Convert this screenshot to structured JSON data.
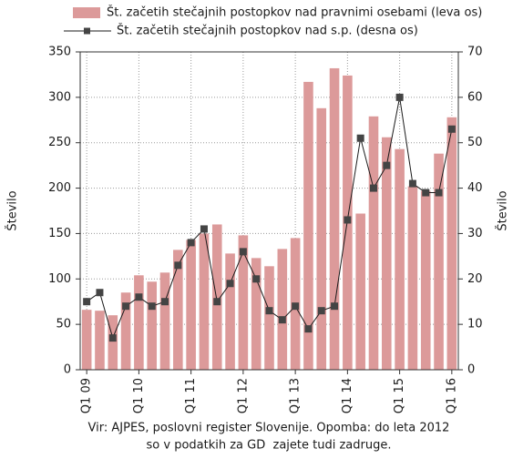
{
  "chart_data": {
    "type": "bar_line",
    "categories": [
      "Q1 09",
      null,
      null,
      null,
      "Q1 10",
      null,
      null,
      null,
      "Q1 11",
      null,
      null,
      null,
      "Q1 12",
      null,
      null,
      null,
      "Q1 13",
      null,
      null,
      null,
      "Q1 14",
      null,
      null,
      null,
      "Q1 15",
      null,
      null,
      null,
      "Q1 16"
    ],
    "series": [
      {
        "name": "Št. začetih stečajnih postopkov nad pravnimi osebami (leva os)",
        "type": "bar",
        "color": "#dc9a9a",
        "values": [
          66,
          65,
          60,
          85,
          104,
          97,
          107,
          132,
          143,
          150,
          160,
          128,
          148,
          123,
          114,
          133,
          145,
          317,
          288,
          332,
          324,
          172,
          279,
          256,
          243,
          202,
          197,
          238,
          278
        ]
      },
      {
        "name": "Št. začetih stečajnih postopkov nad s.p. (desna os)",
        "type": "line",
        "axis": "y2",
        "color": "#1a1a1a",
        "marker_color": "#444444",
        "values": [
          15,
          17,
          7,
          14,
          16,
          14,
          15,
          23,
          28,
          31,
          15,
          19,
          26,
          20,
          13,
          11,
          14,
          9,
          13,
          14,
          33,
          51,
          40,
          45,
          60,
          41,
          39,
          39,
          53
        ]
      }
    ],
    "ylabel": "Število",
    "y2label": "Število",
    "ylim": [
      0,
      350
    ],
    "yticks": [
      0,
      50,
      100,
      150,
      200,
      250,
      300,
      350
    ],
    "y2lim": [
      0,
      70
    ],
    "y2ticks": [
      0,
      10,
      20,
      30,
      40,
      50,
      60,
      70
    ],
    "grid": true,
    "notes": [
      "Vir: AJPES, poslovni register Slovenije. Opomba: do leta 2012",
      "so v podatkih za GD  zajete tudi zadruge."
    ]
  }
}
